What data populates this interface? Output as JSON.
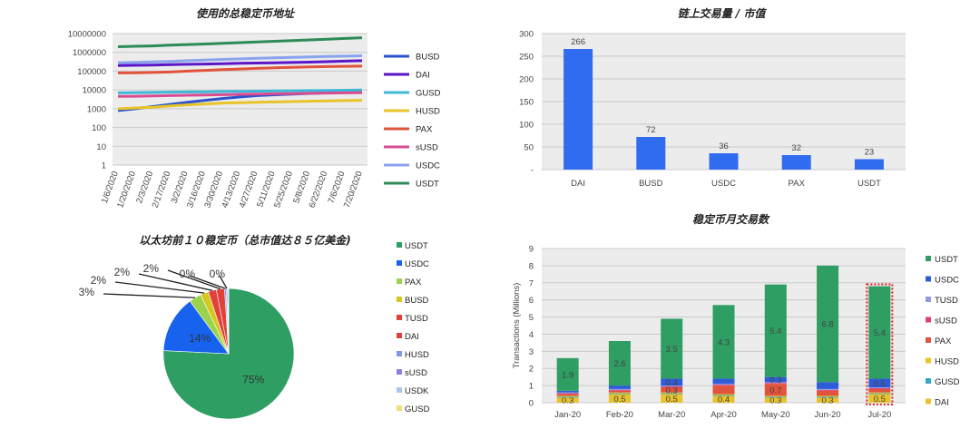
{
  "chart_data": [
    {
      "type": "line",
      "title": "使用的总稳定币地址",
      "scale": "log",
      "ylim": [
        1,
        10000000
      ],
      "yticks": [
        "10000000",
        "1000000",
        "100000",
        "10000",
        "1000",
        "100",
        "10",
        "1"
      ],
      "x": [
        "1/6/2020",
        "1/20/2020",
        "2/3/2020",
        "2/17/2020",
        "3/2/2020",
        "3/16/2020",
        "3/30/2020",
        "4/13/2020",
        "4/27/2020",
        "5/11/2020",
        "5/25/2020",
        "5/8/2020",
        "6/22/2020",
        "7/6/2020",
        "7/20/2020"
      ],
      "legend_position": "right",
      "grid": true,
      "series": [
        {
          "name": "BUSD",
          "color": "#2952cc",
          "values": [
            800,
            1000,
            1300,
            1700,
            2200,
            2800,
            3500,
            4200,
            5000,
            5500,
            6000,
            6500,
            7000,
            7500,
            8000
          ]
        },
        {
          "name": "DAI",
          "color": "#5b16c8",
          "values": [
            200000,
            205000,
            210000,
            220000,
            230000,
            240000,
            250000,
            260000,
            270000,
            280000,
            290000,
            300000,
            320000,
            340000,
            360000
          ]
        },
        {
          "name": "GUSD",
          "color": "#3db8d6",
          "values": [
            7000,
            7200,
            7400,
            7600,
            7800,
            8000,
            8200,
            8400,
            8600,
            8800,
            9000,
            9200,
            9400,
            9600,
            9800
          ]
        },
        {
          "name": "HUSD",
          "color": "#e8c42a",
          "values": [
            1000,
            1100,
            1200,
            1400,
            1600,
            1800,
            2000,
            2100,
            2200,
            2300,
            2400,
            2500,
            2600,
            2700,
            2800
          ]
        },
        {
          "name": "PAX",
          "color": "#e2533b",
          "values": [
            80000,
            82000,
            85000,
            90000,
            100000,
            110000,
            120000,
            130000,
            140000,
            150000,
            160000,
            170000,
            175000,
            180000,
            185000
          ]
        },
        {
          "name": "sUSD",
          "color": "#d94c93",
          "values": [
            4500,
            4600,
            4800,
            5000,
            5200,
            5400,
            5600,
            5800,
            6000,
            6200,
            6400,
            6600,
            6800,
            7000,
            7200
          ]
        },
        {
          "name": "USDC",
          "color": "#8aa3ee",
          "values": [
            280000,
            290000,
            310000,
            330000,
            360000,
            390000,
            420000,
            450000,
            480000,
            510000,
            540000,
            570000,
            600000,
            630000,
            660000
          ]
        },
        {
          "name": "USDT",
          "color": "#2c8b57",
          "values": [
            2000000,
            2100000,
            2200000,
            2400000,
            2600000,
            2800000,
            3000000,
            3300000,
            3600000,
            3900000,
            4200000,
            4600000,
            5000000,
            5500000,
            6000000
          ]
        }
      ]
    },
    {
      "type": "bar",
      "title": "链上交易量 / 市值",
      "categories": [
        "DAI",
        "BUSD",
        "USDC",
        "PAX",
        "USDT"
      ],
      "values": [
        266,
        72,
        36,
        32,
        23
      ],
      "ylim": [
        0,
        300
      ],
      "yticks": [
        "300",
        "250",
        "200",
        "150",
        "100",
        "50",
        "-"
      ],
      "color": "#2f6cf0",
      "grid": true
    },
    {
      "type": "pie",
      "title": "以太坊前１０稳定币（总市值达８５亿美金)",
      "labels": [
        "USDT",
        "USDC",
        "PAX",
        "BUSD",
        "TUSD",
        "DAI",
        "HUSD",
        "sUSD",
        "USDK",
        "GUSD"
      ],
      "values": [
        75,
        14,
        3,
        2,
        2,
        2,
        0.4,
        0.3,
        0.2,
        0.1
      ],
      "percent_labels": [
        "75%",
        "14%",
        "3%",
        "2%",
        "2%",
        "2%",
        "0%",
        "0%"
      ],
      "colors": [
        "#2e9e63",
        "#1763f0",
        "#9bd34b",
        "#d8c722",
        "#e0423a",
        "#e0423a",
        "#7f9be6",
        "#8f7fe0",
        "#a9c6f0",
        "#f0e07a"
      ],
      "legend_position": "right"
    },
    {
      "type": "bar",
      "stacked": true,
      "title": "稳定币月交易数",
      "ylabel": "Transactions (Millions)",
      "ylim": [
        0,
        9
      ],
      "yticks": [
        "9",
        "8",
        "7",
        "6",
        "5",
        "4",
        "3",
        "2",
        "1",
        "0"
      ],
      "categories": [
        "Jan-20",
        "Feb-20",
        "Mar-20",
        "Apr-20",
        "May-20",
        "Jun-20",
        "Jul-20"
      ],
      "legend_position": "right",
      "grid": true,
      "series": [
        {
          "name": "DAI",
          "color": "#e8c32c",
          "values": [
            0.3,
            0.5,
            0.5,
            0.4,
            0.3,
            0.3,
            0.5
          ],
          "labels": [
            "0.3",
            "0.5",
            "0.5",
            "0.4",
            "0.3",
            "0.3",
            "0.5"
          ]
        },
        {
          "name": "GUSD",
          "color": "#34a8c8",
          "values": [
            0.05,
            0.05,
            0.05,
            0.05,
            0.05,
            0.05,
            0.05
          ]
        },
        {
          "name": "HUSD",
          "color": "#efc41f",
          "values": [
            0.05,
            0.05,
            0.05,
            0.05,
            0.05,
            0.05,
            0.05
          ]
        },
        {
          "name": "PAX",
          "color": "#e2533b",
          "values": [
            0.1,
            0.1,
            0.3,
            0.5,
            0.7,
            0.3,
            0.2
          ],
          "labels": [
            "",
            "",
            "0.3",
            "",
            "0.7",
            "",
            ""
          ]
        },
        {
          "name": "sUSD",
          "color": "#dd3f7e",
          "values": [
            0.05,
            0.05,
            0.05,
            0.05,
            0.05,
            0.05,
            0.05
          ]
        },
        {
          "name": "TUSD",
          "color": "#8f9bdf",
          "values": [
            0.05,
            0.05,
            0.05,
            0.05,
            0.05,
            0.05,
            0.05
          ]
        },
        {
          "name": "USDC",
          "color": "#2f5cd8",
          "values": [
            0.1,
            0.2,
            0.4,
            0.3,
            0.3,
            0.4,
            0.5
          ],
          "labels": [
            "",
            "",
            "0.4",
            "",
            "0.3",
            "",
            "0.5"
          ]
        },
        {
          "name": "USDT",
          "color": "#2e9e63",
          "values": [
            1.9,
            2.6,
            3.5,
            4.3,
            5.4,
            6.8,
            5.4
          ],
          "labels": [
            "1.9",
            "2.6",
            "3.5",
            "4.3",
            "5.4",
            "6.8",
            "5.4"
          ]
        }
      ],
      "legend_order": [
        "USDT",
        "USDC",
        "TUSD",
        "sUSD",
        "PAX",
        "HUSD",
        "GUSD",
        "DAI"
      ],
      "highlight": "Jul-20"
    }
  ]
}
